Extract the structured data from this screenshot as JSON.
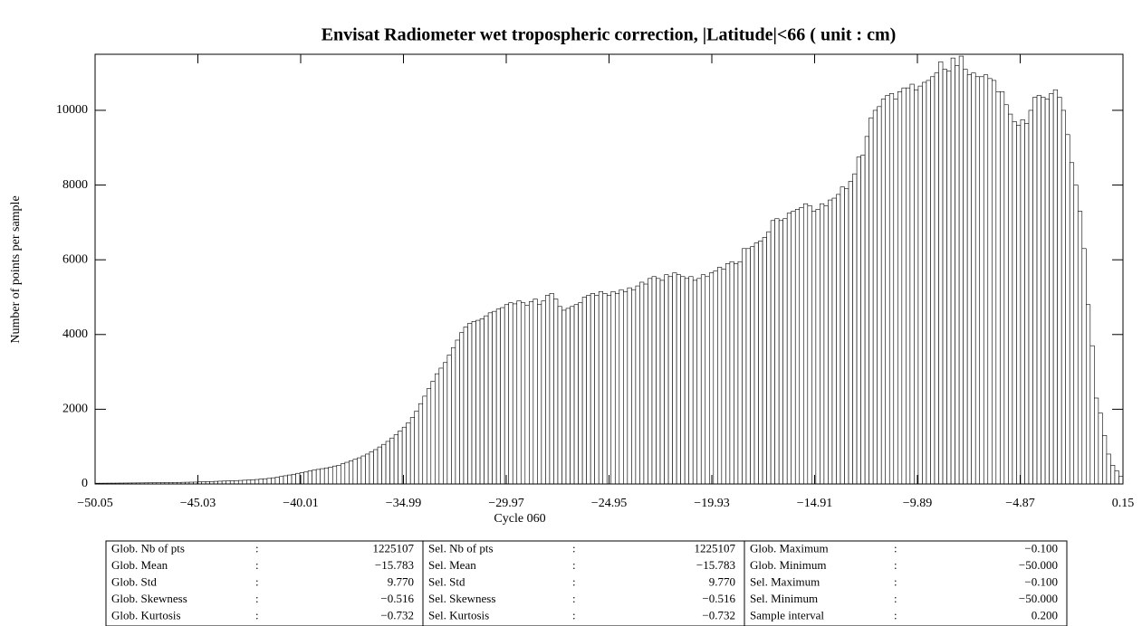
{
  "chart_data": {
    "type": "histogram",
    "title": "Envisat Radiometer wet tropospheric correction, |Latitude|<66  ( unit : cm)",
    "x_label": "Cycle 060",
    "y_label": "Number of points per sample",
    "bins": [
      -50.05,
      -49.85,
      -49.65,
      -49.45,
      -49.25,
      -49.05,
      -48.85,
      -48.65,
      -48.45,
      -48.25,
      -48.05,
      -47.85,
      -47.65,
      -47.45,
      -47.25,
      -47.05,
      -46.85,
      -46.65,
      -46.45,
      -46.25,
      -46.05,
      -45.85,
      -45.65,
      -45.45,
      -45.25,
      -45.05,
      -44.85,
      -44.65,
      -44.45,
      -44.25,
      -44.05,
      -43.85,
      -43.65,
      -43.45,
      -43.25,
      -43.05,
      -42.85,
      -42.65,
      -42.45,
      -42.25,
      -42.05,
      -41.85,
      -41.65,
      -41.45,
      -41.25,
      -41.05,
      -40.85,
      -40.65,
      -40.45,
      -40.25,
      -40.05,
      -39.85,
      -39.65,
      -39.45,
      -39.25,
      -39.05,
      -38.85,
      -38.65,
      -38.45,
      -38.25,
      -38.05,
      -37.85,
      -37.65,
      -37.45,
      -37.25,
      -37.05,
      -36.85,
      -36.65,
      -36.45,
      -36.25,
      -36.05,
      -35.85,
      -35.65,
      -35.45,
      -35.25,
      -35.05,
      -34.85,
      -34.65,
      -34.45,
      -34.25,
      -34.05,
      -33.85,
      -33.65,
      -33.45,
      -33.25,
      -33.05,
      -32.85,
      -32.65,
      -32.45,
      -32.25,
      -32.05,
      -31.85,
      -31.65,
      -31.45,
      -31.25,
      -31.05,
      -30.85,
      -30.65,
      -30.45,
      -30.25,
      -30.05,
      -29.85,
      -29.65,
      -29.45,
      -29.25,
      -29.05,
      -28.85,
      -28.65,
      -28.45,
      -28.25,
      -28.05,
      -27.85,
      -27.65,
      -27.45,
      -27.25,
      -27.05,
      -26.85,
      -26.65,
      -26.45,
      -26.25,
      -26.05,
      -25.85,
      -25.65,
      -25.45,
      -25.25,
      -25.05,
      -24.85,
      -24.65,
      -24.45,
      -24.25,
      -24.05,
      -23.85,
      -23.65,
      -23.45,
      -23.25,
      -23.05,
      -22.85,
      -22.65,
      -22.45,
      -22.25,
      -22.05,
      -21.85,
      -21.65,
      -21.45,
      -21.25,
      -21.05,
      -20.85,
      -20.65,
      -20.45,
      -20.25,
      -20.05,
      -19.85,
      -19.65,
      -19.45,
      -19.25,
      -19.05,
      -18.85,
      -18.65,
      -18.45,
      -18.25,
      -18.05,
      -17.85,
      -17.65,
      -17.45,
      -17.25,
      -17.05,
      -16.85,
      -16.65,
      -16.45,
      -16.25,
      -16.05,
      -15.85,
      -15.65,
      -15.45,
      -15.25,
      -15.05,
      -14.85,
      -14.65,
      -14.45,
      -14.25,
      -14.05,
      -13.85,
      -13.65,
      -13.45,
      -13.25,
      -13.05,
      -12.85,
      -12.65,
      -12.45,
      -12.25,
      -12.05,
      -11.85,
      -11.65,
      -11.45,
      -11.25,
      -11.05,
      -10.85,
      -10.65,
      -10.45,
      -10.25,
      -10.05,
      -9.85,
      -9.65,
      -9.45,
      -9.25,
      -9.05,
      -8.85,
      -8.65,
      -8.45,
      -8.25,
      -8.05,
      -7.85,
      -7.65,
      -7.45,
      -7.25,
      -7.05,
      -6.85,
      -6.65,
      -6.45,
      -6.25,
      -6.05,
      -5.85,
      -5.65,
      -5.45,
      -5.25,
      -5.05,
      -4.85,
      -4.65,
      -4.45,
      -4.25,
      -4.05,
      -3.85,
      -3.65,
      -3.45,
      -3.25,
      -3.05,
      -2.85,
      -2.65,
      -2.45,
      -2.25,
      -2.05,
      -1.85,
      -1.65,
      -1.45,
      -1.25,
      -1.05,
      -0.85,
      -0.65,
      -0.45,
      -0.25,
      -0.05,
      0.15
    ],
    "counts": [
      20,
      20,
      21,
      22,
      22,
      23,
      24,
      25,
      26,
      27,
      28,
      29,
      30,
      31,
      32,
      33,
      35,
      36,
      38,
      40,
      42,
      44,
      46,
      48,
      50,
      55,
      58,
      62,
      66,
      70,
      74,
      78,
      82,
      86,
      90,
      95,
      100,
      106,
      112,
      120,
      130,
      140,
      150,
      165,
      180,
      200,
      220,
      240,
      260,
      285,
      300,
      320,
      350,
      370,
      390,
      410,
      430,
      450,
      480,
      500,
      540,
      580,
      620,
      660,
      700,
      750,
      800,
      860,
      920,
      990,
      1060,
      1140,
      1230,
      1320,
      1420,
      1520,
      1640,
      1780,
      1950,
      2150,
      2350,
      2550,
      2750,
      2950,
      3100,
      3250,
      3450,
      3650,
      3850,
      4050,
      4200,
      4300,
      4350,
      4380,
      4420,
      4500,
      4580,
      4620,
      4680,
      4720,
      4800,
      4850,
      4820,
      4900,
      4850,
      4780,
      4880,
      4950,
      4800,
      4900,
      5050,
      5100,
      4950,
      4750,
      4650,
      4700,
      4750,
      4800,
      4850,
      5000,
      5050,
      5100,
      5050,
      5150,
      5100,
      5050,
      5150,
      5100,
      5200,
      5150,
      5250,
      5200,
      5300,
      5400,
      5350,
      5500,
      5550,
      5500,
      5450,
      5600,
      5550,
      5650,
      5600,
      5550,
      5500,
      5550,
      5450,
      5500,
      5600,
      5550,
      5650,
      5700,
      5800,
      5750,
      5900,
      5950,
      5900,
      5950,
      6300,
      6300,
      6350,
      6450,
      6500,
      6600,
      6750,
      7050,
      7100,
      7050,
      7100,
      7250,
      7300,
      7350,
      7400,
      7500,
      7450,
      7300,
      7350,
      7500,
      7450,
      7600,
      7650,
      7750,
      7950,
      7900,
      8100,
      8300,
      8750,
      8800,
      9300,
      9800,
      10000,
      10100,
      10300,
      10400,
      10450,
      10300,
      10500,
      10600,
      10600,
      10700,
      10550,
      10650,
      10750,
      10800,
      10900,
      11000,
      11300,
      11100,
      11050,
      11400,
      11200,
      11450,
      11100,
      10950,
      11000,
      10900,
      10900,
      10950,
      10850,
      10800,
      10500,
      10500,
      10150,
      9900,
      9700,
      9600,
      9750,
      9650,
      10000,
      10350,
      10400,
      10350,
      10300,
      10450,
      10550,
      10350,
      10000,
      9350,
      8600,
      8000,
      7300,
      6300,
      4800,
      3700,
      2300,
      1900,
      1300,
      800,
      500,
      350,
      200
    ],
    "color": "#ffffff",
    "edge_color": "#000000",
    "xlim": [
      -50.05,
      0.15
    ],
    "xticks": [
      {
        "value": -50.05,
        "label": "−50.05"
      },
      {
        "value": -45.03,
        "label": "−45.03"
      },
      {
        "value": -40.01,
        "label": "−40.01"
      },
      {
        "value": -34.99,
        "label": "−34.99"
      },
      {
        "value": -29.97,
        "label": "−29.97"
      },
      {
        "value": -24.95,
        "label": "−24.95"
      },
      {
        "value": -19.93,
        "label": "−19.93"
      },
      {
        "value": -14.91,
        "label": "−14.91"
      },
      {
        "value": -9.89,
        "label": "−9.89"
      },
      {
        "value": -4.87,
        "label": "−4.87"
      },
      0.15
    ],
    "ylim": [
      0,
      11500
    ],
    "yticks": [
      0,
      2000,
      4000,
      6000,
      8000,
      10000
    ]
  },
  "table": {
    "separator": ":",
    "rows": [
      [
        [
          "Glob. Nb of pts",
          "1225107"
        ],
        [
          "Sel. Nb of pts",
          "1225107"
        ],
        [
          "Glob. Maximum",
          "−0.100"
        ]
      ],
      [
        [
          "Glob. Mean",
          "−15.783"
        ],
        [
          "Sel. Mean",
          "−15.783"
        ],
        [
          "Glob. Minimum",
          "−50.000"
        ]
      ],
      [
        [
          "Glob. Std",
          "9.770"
        ],
        [
          "Sel. Std",
          "9.770"
        ],
        [
          "Sel. Maximum",
          "−0.100"
        ]
      ],
      [
        [
          "Glob. Skewness",
          "−0.516"
        ],
        [
          "Sel. Skewness",
          "−0.516"
        ],
        [
          "Sel. Minimum",
          "−50.000"
        ]
      ],
      [
        [
          "Glob. Kurtosis",
          "−0.732"
        ],
        [
          "Sel. Kurtosis",
          "−0.732"
        ],
        [
          "Sample interval",
          "0.200"
        ]
      ]
    ]
  }
}
